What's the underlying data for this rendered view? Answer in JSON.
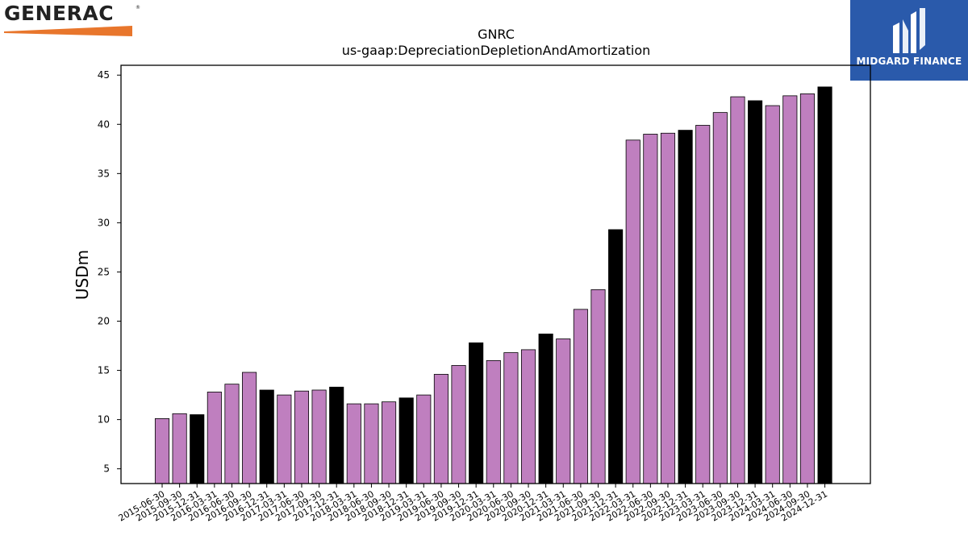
{
  "logos": {
    "left_text": "GENERAC",
    "left_mark": "®",
    "right_text": "MIDGARD FINANCE",
    "accent": "#e8762c",
    "right_bg": "#2a5aab"
  },
  "chart_data": {
    "type": "bar",
    "title": "GNRC",
    "subtitle": "us-gaap:DepreciationDepletionAndAmortization",
    "xlabel": "",
    "ylabel": "USDm",
    "ylim": [
      3.5,
      46
    ],
    "yticks": [
      5,
      10,
      15,
      20,
      25,
      30,
      35,
      40,
      45
    ],
    "grid": false,
    "colors": {
      "quarter": "#bf7fbf",
      "year_end": "#000000"
    },
    "categories": [
      "2015-06-30",
      "2015-09-30",
      "2015-12-31",
      "2016-03-31",
      "2016-06-30",
      "2016-09-30",
      "2016-12-31",
      "2017-03-31",
      "2017-06-30",
      "2017-09-30",
      "2017-12-31",
      "2018-03-31",
      "2018-06-30",
      "2018-09-30",
      "2018-12-31",
      "2019-03-31",
      "2019-06-30",
      "2019-09-30",
      "2019-12-31",
      "2020-03-31",
      "2020-06-30",
      "2020-09-30",
      "2020-12-31",
      "2021-03-31",
      "2021-06-30",
      "2021-09-30",
      "2021-12-31",
      "2022-03-31",
      "2022-06-30",
      "2022-09-30",
      "2022-12-31",
      "2023-03-31",
      "2023-06-30",
      "2023-09-30",
      "2023-12-31",
      "2024-03-31",
      "2024-06-30",
      "2024-09-30",
      "2024-12-31"
    ],
    "values": [
      10.1,
      10.6,
      10.5,
      12.8,
      13.6,
      14.8,
      13.0,
      12.5,
      12.9,
      13.0,
      13.3,
      11.6,
      11.6,
      11.8,
      12.2,
      12.5,
      14.6,
      15.5,
      17.8,
      16.0,
      16.8,
      17.1,
      18.7,
      18.2,
      21.2,
      23.2,
      29.3,
      38.4,
      39.0,
      39.1,
      39.4,
      39.9,
      41.2,
      42.8,
      42.4,
      41.9,
      42.9,
      43.1,
      43.8
    ]
  }
}
